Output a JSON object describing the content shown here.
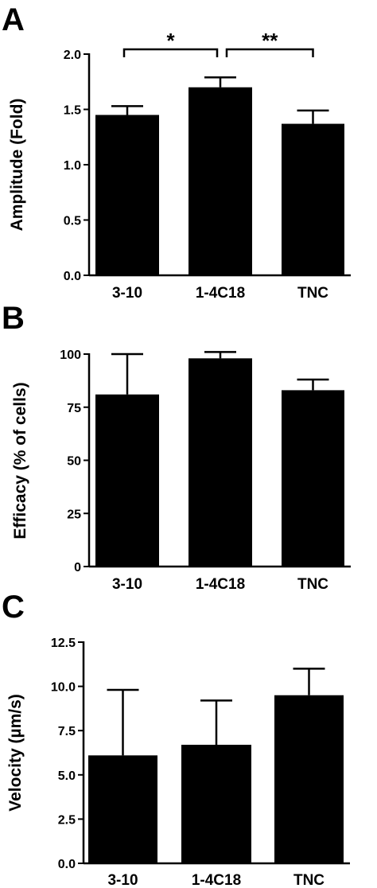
{
  "figure": {
    "colors": {
      "bar": "#000000",
      "axis": "#000000",
      "background": "#ffffff"
    }
  },
  "chart_data": [
    {
      "panel": "A",
      "type": "bar",
      "categories": [
        "3-10",
        "1-4C18",
        "TNC"
      ],
      "values": [
        1.45,
        1.7,
        1.37
      ],
      "errors": [
        0.08,
        0.09,
        0.12
      ],
      "ylabel": "Amplitude (Fold)",
      "ylim": [
        0,
        2.0
      ],
      "yticks": [
        "0.0",
        "0.5",
        "1.0",
        "1.5",
        "2.0"
      ],
      "grid": false,
      "significance": [
        {
          "from": 0,
          "to": 1,
          "label": "*"
        },
        {
          "from": 1,
          "to": 2,
          "label": "**"
        }
      ]
    },
    {
      "panel": "B",
      "type": "bar",
      "categories": [
        "3-10",
        "1-4C18",
        "TNC"
      ],
      "values": [
        81,
        98,
        83
      ],
      "errors": [
        19,
        3,
        5
      ],
      "ylabel": "Efficacy (% of cells)",
      "ylim": [
        0,
        100
      ],
      "yticks": [
        "0",
        "25",
        "50",
        "75",
        "100"
      ],
      "grid": false,
      "significance": []
    },
    {
      "panel": "C",
      "type": "bar",
      "categories": [
        "3-10",
        "1-4C18",
        "TNC"
      ],
      "values": [
        6.1,
        6.7,
        9.5
      ],
      "errors": [
        3.7,
        2.5,
        1.5
      ],
      "ylabel": "Velocity (µm/s)",
      "ylim": [
        0,
        12.5
      ],
      "yticks": [
        "0.0",
        "2.5",
        "5.0",
        "7.5",
        "10.0",
        "12.5"
      ],
      "grid": false,
      "significance": []
    }
  ]
}
